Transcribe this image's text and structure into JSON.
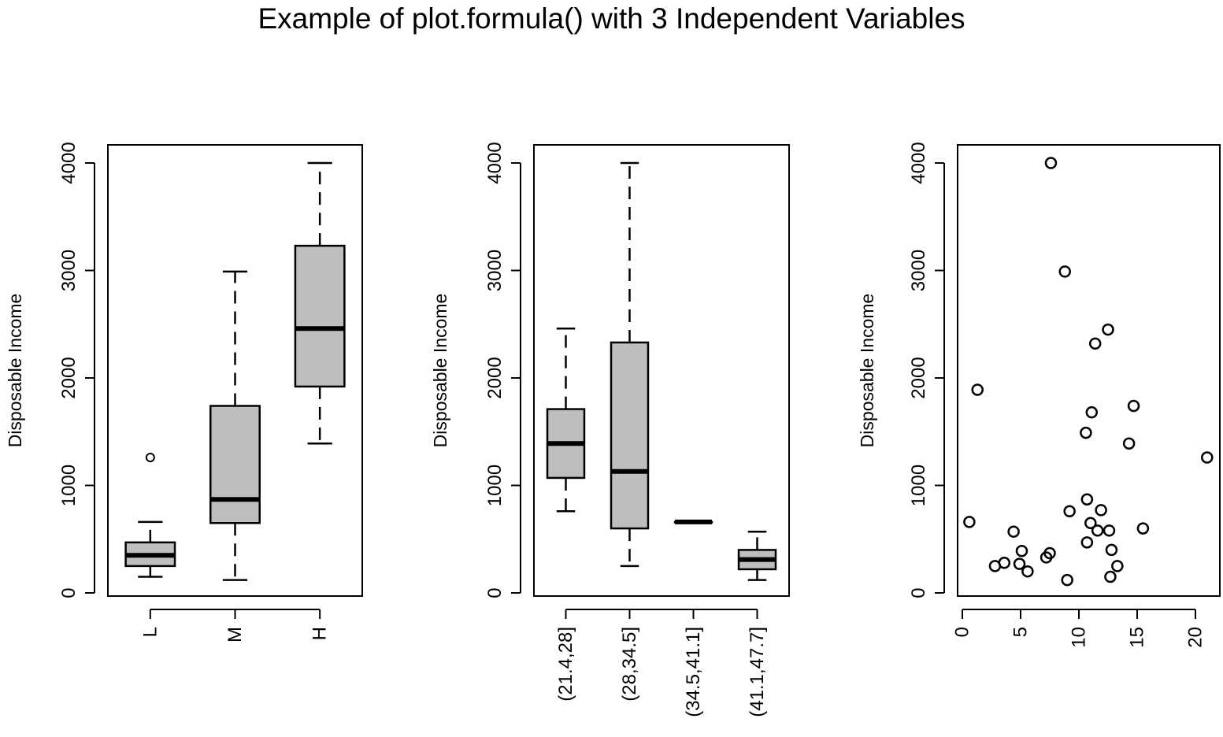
{
  "title": "Example of plot.formula() with 3 Independent Variables",
  "colors": {
    "box_fill": "#bebebe",
    "stroke": "#000000",
    "background": "#ffffff"
  },
  "chart_data": [
    {
      "type": "box",
      "ylabel": "Disposable Income",
      "ylim": [
        0,
        4000
      ],
      "yticks": [
        0,
        1000,
        2000,
        3000,
        4000
      ],
      "categories": [
        "L",
        "M",
        "H"
      ],
      "boxes": [
        {
          "category": "L",
          "whisker_low": 150,
          "q1": 250,
          "median": 350,
          "q3": 470,
          "whisker_high": 660,
          "outliers": [
            1260
          ]
        },
        {
          "category": "M",
          "whisker_low": 120,
          "q1": 650,
          "median": 870,
          "q3": 1740,
          "whisker_high": 2990,
          "outliers": []
        },
        {
          "category": "H",
          "whisker_low": 1390,
          "q1": 1920,
          "median": 2460,
          "q3": 3230,
          "whisker_high": 4000,
          "outliers": []
        }
      ]
    },
    {
      "type": "box",
      "ylabel": "Disposable Income",
      "ylim": [
        0,
        4000
      ],
      "yticks": [
        0,
        1000,
        2000,
        3000,
        4000
      ],
      "categories": [
        "(21.4,28]",
        "(28,34.5]",
        "(34.5,41.1]",
        "(41.1,47.7]"
      ],
      "boxes": [
        {
          "category": "(21.4,28]",
          "whisker_low": 760,
          "q1": 1070,
          "median": 1390,
          "q3": 1710,
          "whisker_high": 2460,
          "outliers": []
        },
        {
          "category": "(28,34.5]",
          "whisker_low": 250,
          "q1": 600,
          "median": 1130,
          "q3": 2330,
          "whisker_high": 4000,
          "outliers": []
        },
        {
          "category": "(34.5,41.1]",
          "whisker_low": 660,
          "q1": 660,
          "median": 660,
          "q3": 660,
          "whisker_high": 660,
          "outliers": []
        },
        {
          "category": "(41.1,47.7]",
          "whisker_low": 120,
          "q1": 220,
          "median": 310,
          "q3": 400,
          "whisker_high": 570,
          "outliers": []
        }
      ]
    },
    {
      "type": "scatter",
      "ylabel": "Disposable Income",
      "xlim": [
        0,
        21
      ],
      "ylim": [
        0,
        4000
      ],
      "xticks": [
        0,
        5,
        10,
        15,
        20
      ],
      "yticks": [
        0,
        1000,
        2000,
        3000,
        4000
      ],
      "x": [
        0.6,
        1.3,
        2.8,
        3.6,
        4.4,
        4.9,
        5.1,
        5.6,
        7.2,
        7.5,
        7.6,
        8.8,
        9.0,
        9.2,
        10.6,
        10.7,
        10.7,
        11.0,
        11.1,
        11.4,
        11.6,
        11.9,
        12.5,
        12.6,
        12.7,
        12.8,
        13.3,
        14.3,
        14.7,
        15.5,
        21.0
      ],
      "y": [
        660,
        1890,
        250,
        280,
        570,
        270,
        390,
        200,
        330,
        370,
        4000,
        2990,
        120,
        760,
        1490,
        870,
        470,
        650,
        1680,
        2320,
        580,
        770,
        2450,
        580,
        150,
        400,
        250,
        1390,
        1740,
        600,
        1260
      ]
    }
  ]
}
